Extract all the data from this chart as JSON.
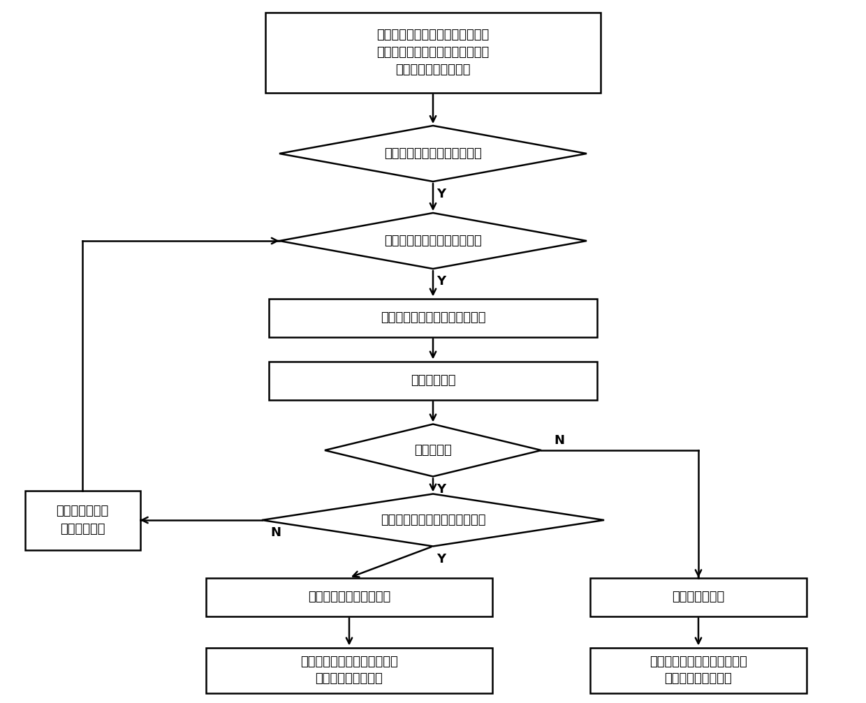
{
  "bg_color": "#ffffff",
  "line_color": "#000000",
  "text_color": "#000000",
  "start_text": "预先布置第一输送线、第二输送线\n、第三输送线以及检定工位，每一\n个检定工位处设机械手",
  "d1_text": "需要配电终端自动检定作业？",
  "d2_text": "配电终端进入当前检定工位？",
  "b1_text": "通过机械手抓取到当前检定工位",
  "b2_text": "完成检定作业",
  "d3_text": "检定合格？",
  "d4_text": "所有的检定工位检定作业完成？",
  "bleft_text": "通过机械手放回\n到第一输送线",
  "b3_text": "完成封印和合格标签粘贴",
  "b4_text": "通过机械手放置到第二输送线\n传送至第一指定位置",
  "bright_text": "打上不合格标识",
  "b5_text": "通过机械手放置到第三输送线\n传送至第二指定位置",
  "lw": 1.8,
  "font_size": 13,
  "font_size_label": 13
}
